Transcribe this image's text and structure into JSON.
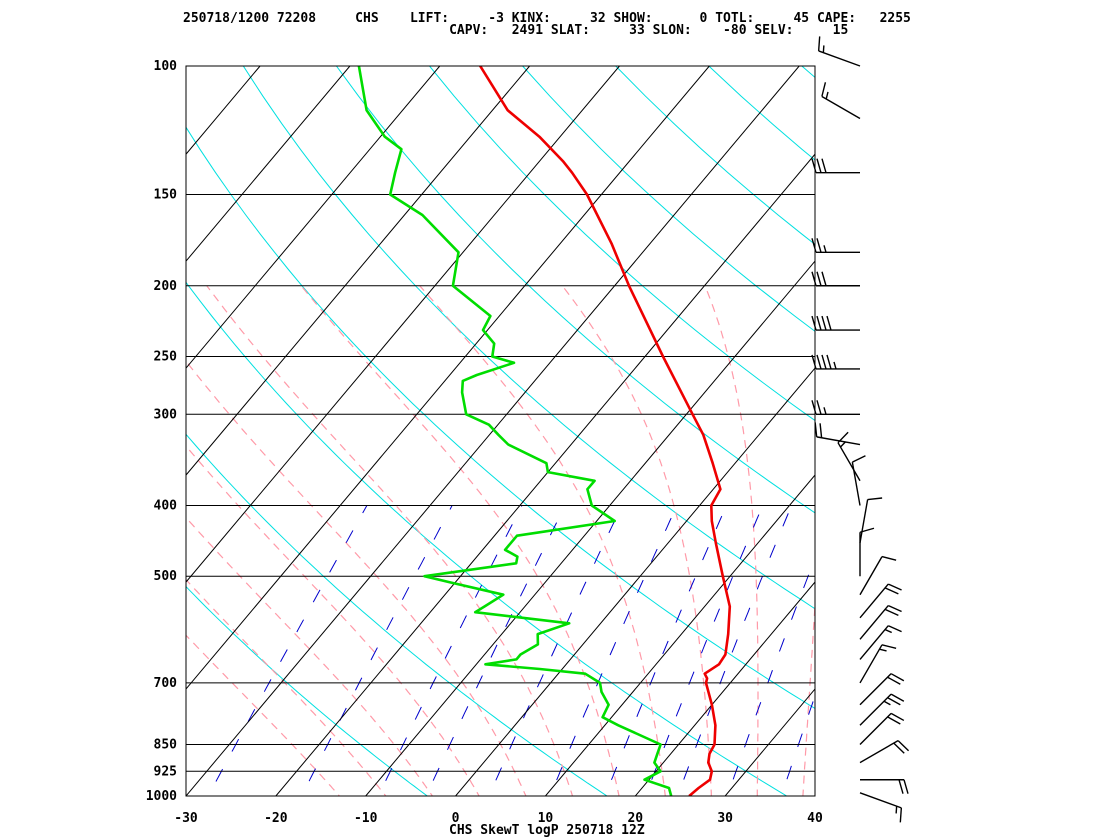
{
  "header": {
    "line1": "250718/1200 72208     CHS    LIFT:     -3 KINX:     32 SHOW:      0 TOTL:     45 CAPE:   2255",
    "line2": "                                  CAPV:   2491 SLAT:     33 SLON:    -80 SELV:     15"
  },
  "footer": "CHS SkewT logP 250718 12Z",
  "colors": {
    "temperature": "#ee0000",
    "dewpoint": "#00dd00",
    "isotherm": "#000000",
    "isobar": "#000000",
    "dry_adiabat": "#00e0e0",
    "moist_adiabat": "#ff9aa8",
    "mixing_ratio": "#0000cc",
    "barb": "#000000"
  },
  "chart_data": {
    "type": "line",
    "title": "",
    "xlabel": "",
    "ylabel": "",
    "xlim": [
      -30,
      40
    ],
    "ylim": [
      1000,
      100
    ],
    "yscale": "log",
    "x_ticks": [
      "-30",
      "-20",
      "-10",
      "0",
      "10",
      "20",
      "30",
      "40"
    ],
    "y_ticks": [
      "100",
      "150",
      "200",
      "250",
      "300",
      "400",
      "500",
      "700",
      "850",
      "925",
      "1000"
    ],
    "series": [
      {
        "key": "temperature",
        "points": [
          [
            1000,
            26.0
          ],
          [
            975,
            26.3
          ],
          [
            950,
            26.8
          ],
          [
            925,
            26.2
          ],
          [
            900,
            25.0
          ],
          [
            875,
            24.3
          ],
          [
            850,
            24.0
          ],
          [
            800,
            22.3
          ],
          [
            750,
            20.0
          ],
          [
            700,
            17.3
          ],
          [
            690,
            17.0
          ],
          [
            680,
            16.3
          ],
          [
            660,
            17.0
          ],
          [
            640,
            16.8
          ],
          [
            600,
            15.2
          ],
          [
            550,
            12.8
          ],
          [
            500,
            9.2
          ],
          [
            450,
            5.3
          ],
          [
            420,
            2.8
          ],
          [
            400,
            1.3
          ],
          [
            380,
            0.8
          ],
          [
            350,
            -2.5
          ],
          [
            320,
            -6.2
          ],
          [
            300,
            -9.3
          ],
          [
            250,
            -18.0
          ],
          [
            200,
            -28.4
          ],
          [
            175,
            -34.3
          ],
          [
            150,
            -41.6
          ],
          [
            140,
            -45.3
          ],
          [
            135,
            -47.4
          ],
          [
            125,
            -52.3
          ],
          [
            115,
            -58.3
          ],
          [
            100,
            -65.5
          ]
        ]
      },
      {
        "key": "dewpoint",
        "points": [
          [
            1000,
            24.0
          ],
          [
            975,
            23.0
          ],
          [
            950,
            19.5
          ],
          [
            925,
            20.5
          ],
          [
            900,
            19.0
          ],
          [
            875,
            18.5
          ],
          [
            850,
            18.0
          ],
          [
            800,
            11.5
          ],
          [
            780,
            9.0
          ],
          [
            750,
            8.5
          ],
          [
            720,
            6.5
          ],
          [
            700,
            5.5
          ],
          [
            680,
            3.0
          ],
          [
            670,
            -2.5
          ],
          [
            660,
            -9.0
          ],
          [
            650,
            -6.0
          ],
          [
            640,
            -6.0
          ],
          [
            620,
            -5.0
          ],
          [
            600,
            -6.0
          ],
          [
            580,
            -3.5
          ],
          [
            560,
            -15.0
          ],
          [
            550,
            -14.5
          ],
          [
            530,
            -13.5
          ],
          [
            510,
            -20.5
          ],
          [
            500,
            -24.0
          ],
          [
            480,
            -15.0
          ],
          [
            470,
            -15.5
          ],
          [
            460,
            -17.5
          ],
          [
            440,
            -17.5
          ],
          [
            420,
            -8.0
          ],
          [
            400,
            -12.0
          ],
          [
            380,
            -14.0
          ],
          [
            370,
            -14.0
          ],
          [
            360,
            -20.0
          ],
          [
            350,
            -21.0
          ],
          [
            330,
            -27.0
          ],
          [
            320,
            -29.0
          ],
          [
            310,
            -31.0
          ],
          [
            300,
            -34.5
          ],
          [
            280,
            -37.0
          ],
          [
            270,
            -38.0
          ],
          [
            265,
            -37.0
          ],
          [
            255,
            -34.0
          ],
          [
            250,
            -37.0
          ],
          [
            240,
            -38.0
          ],
          [
            230,
            -40.5
          ],
          [
            220,
            -41.0
          ],
          [
            200,
            -48.0
          ],
          [
            180,
            -50.5
          ],
          [
            160,
            -58.0
          ],
          [
            150,
            -63.5
          ],
          [
            140,
            -65.0
          ],
          [
            130,
            -66.5
          ],
          [
            125,
            -69.5
          ],
          [
            115,
            -74.0
          ],
          [
            100,
            -79.0
          ]
        ]
      }
    ],
    "wind_barbs": [
      [
        100,
        290,
        15
      ],
      [
        118,
        300,
        15
      ],
      [
        140,
        270,
        30
      ],
      [
        180,
        270,
        25
      ],
      [
        200,
        270,
        30
      ],
      [
        230,
        270,
        40
      ],
      [
        260,
        270,
        45
      ],
      [
        300,
        270,
        25
      ],
      [
        330,
        280,
        20
      ],
      [
        370,
        330,
        15
      ],
      [
        400,
        350,
        10
      ],
      [
        450,
        10,
        10
      ],
      [
        500,
        360,
        10
      ],
      [
        530,
        30,
        10
      ],
      [
        570,
        40,
        20
      ],
      [
        610,
        40,
        20
      ],
      [
        650,
        40,
        15
      ],
      [
        700,
        30,
        15
      ],
      [
        750,
        45,
        20
      ],
      [
        800,
        45,
        25
      ],
      [
        850,
        45,
        20
      ],
      [
        900,
        60,
        20
      ],
      [
        950,
        90,
        20
      ],
      [
        990,
        110,
        15
      ]
    ]
  }
}
